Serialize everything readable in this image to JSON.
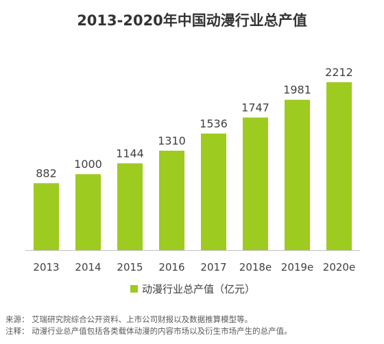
{
  "chart_data": {
    "type": "bar",
    "title": "2013-2020年中国动漫行业总产值",
    "categories": [
      "2013",
      "2014",
      "2015",
      "2016",
      "2017",
      "2018e",
      "2019e",
      "2020e"
    ],
    "series": [
      {
        "name": "动漫行业总产值（亿元）",
        "values": [
          882,
          1000,
          1144,
          1310,
          1536,
          1747,
          1981,
          2212
        ]
      }
    ],
    "xlabel": "",
    "ylabel": "",
    "ylim": [
      0,
      2212
    ],
    "grid": false,
    "legend_position": "bottom",
    "bar_color": "#9dcb1f",
    "axis_color": "#bfbfbf"
  },
  "footnotes": {
    "source": "来源：  艾瑞研究院综合公开资料、上市公司财报以及数据推算模型等。",
    "note": "注释：  动漫行业总产值包括各类载体动漫的内容市场以及衍生市场产生的总产值。"
  }
}
